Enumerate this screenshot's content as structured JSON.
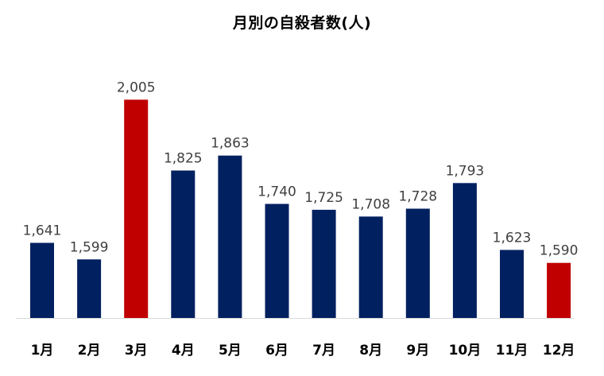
{
  "chart_data": {
    "type": "bar",
    "title": "月別の自殺者数(人)",
    "categories": [
      "1月",
      "2月",
      "3月",
      "4月",
      "5月",
      "6月",
      "7月",
      "8月",
      "9月",
      "10月",
      "11月",
      "12月"
    ],
    "values": [
      1641,
      1599,
      2005,
      1825,
      1863,
      1740,
      1725,
      1708,
      1728,
      1793,
      1623,
      1590
    ],
    "value_labels": [
      "1,641",
      "1,599",
      "2,005",
      "1,825",
      "1,863",
      "1,740",
      "1,725",
      "1,708",
      "1,728",
      "1,793",
      "1,623",
      "1,590"
    ],
    "highlighted": [
      2,
      11
    ],
    "ylim": [
      1450,
      2020
    ],
    "xlabel": "",
    "ylabel": "",
    "grid": false,
    "legend": "none",
    "colors": {
      "default": "#002060",
      "highlight": "#C00000",
      "axis": "#D9D9D9"
    }
  }
}
